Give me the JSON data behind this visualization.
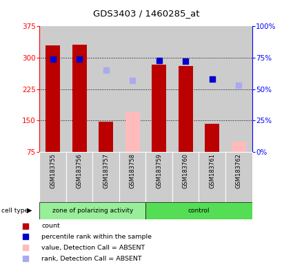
{
  "title": "GDS3403 / 1460285_at",
  "samples": [
    "GSM183755",
    "GSM183756",
    "GSM183757",
    "GSM183758",
    "GSM183759",
    "GSM183760",
    "GSM183761",
    "GSM183762"
  ],
  "count_values": [
    330,
    332,
    147,
    null,
    284,
    280,
    142,
    null
  ],
  "count_absent_values": [
    null,
    null,
    null,
    170,
    null,
    null,
    null,
    100
  ],
  "percentile_present": [
    74,
    74,
    null,
    null,
    73,
    72,
    58,
    null
  ],
  "percentile_absent": [
    null,
    null,
    65,
    57,
    null,
    null,
    null,
    53
  ],
  "ylim_left": [
    75,
    375
  ],
  "yticks_left": [
    75,
    150,
    225,
    300,
    375
  ],
  "ylim_right": [
    0,
    100
  ],
  "yticks_right": [
    0,
    25,
    50,
    75,
    100
  ],
  "bar_width": 0.55,
  "count_color": "#bb0000",
  "count_absent_color": "#ffbbbb",
  "percentile_color": "#0000cc",
  "percentile_absent_color": "#aaaaee",
  "bg_color": "#cccccc",
  "group1_label": "zone of polarizing activity",
  "group2_label": "control",
  "group1_color": "#99ee99",
  "group2_color": "#55dd55",
  "legend_items": [
    {
      "color": "#bb0000",
      "marker": "s",
      "label": "count"
    },
    {
      "color": "#0000cc",
      "marker": "s",
      "label": "percentile rank within the sample"
    },
    {
      "color": "#ffbbbb",
      "marker": "s",
      "label": "value, Detection Call = ABSENT"
    },
    {
      "color": "#aaaaee",
      "marker": "s",
      "label": "rank, Detection Call = ABSENT"
    }
  ]
}
